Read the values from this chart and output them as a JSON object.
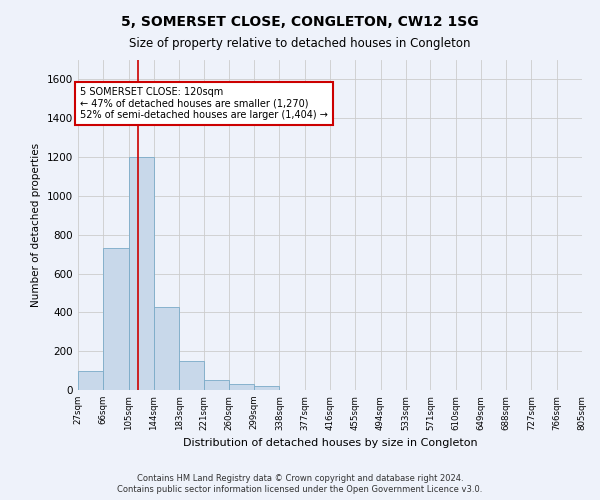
{
  "title": "5, SOMERSET CLOSE, CONGLETON, CW12 1SG",
  "subtitle": "Size of property relative to detached houses in Congleton",
  "xlabel": "Distribution of detached houses by size in Congleton",
  "ylabel": "Number of detached properties",
  "footer_line1": "Contains HM Land Registry data © Crown copyright and database right 2024.",
  "footer_line2": "Contains public sector information licensed under the Open Government Licence v3.0.",
  "bar_edges": [
    27,
    66,
    105,
    144,
    183,
    221,
    260,
    299,
    338,
    377,
    416,
    455,
    494,
    533,
    571,
    610,
    649,
    688,
    727,
    766,
    805
  ],
  "bar_heights": [
    100,
    730,
    1200,
    430,
    150,
    50,
    30,
    20,
    0,
    0,
    0,
    0,
    0,
    0,
    0,
    0,
    0,
    0,
    0,
    0
  ],
  "bar_color": "#c8d8ea",
  "bar_edgecolor": "#7aaac8",
  "grid_color": "#cccccc",
  "vline_x": 120,
  "vline_color": "#cc0000",
  "annotation_line1": "5 SOMERSET CLOSE: 120sqm",
  "annotation_line2": "← 47% of detached houses are smaller (1,270)",
  "annotation_line3": "52% of semi-detached houses are larger (1,404) →",
  "annotation_box_color": "#ffffff",
  "annotation_box_edgecolor": "#cc0000",
  "ylim": [
    0,
    1700
  ],
  "yticks": [
    0,
    200,
    400,
    600,
    800,
    1000,
    1200,
    1400,
    1600
  ],
  "bg_color": "#eef2fa"
}
